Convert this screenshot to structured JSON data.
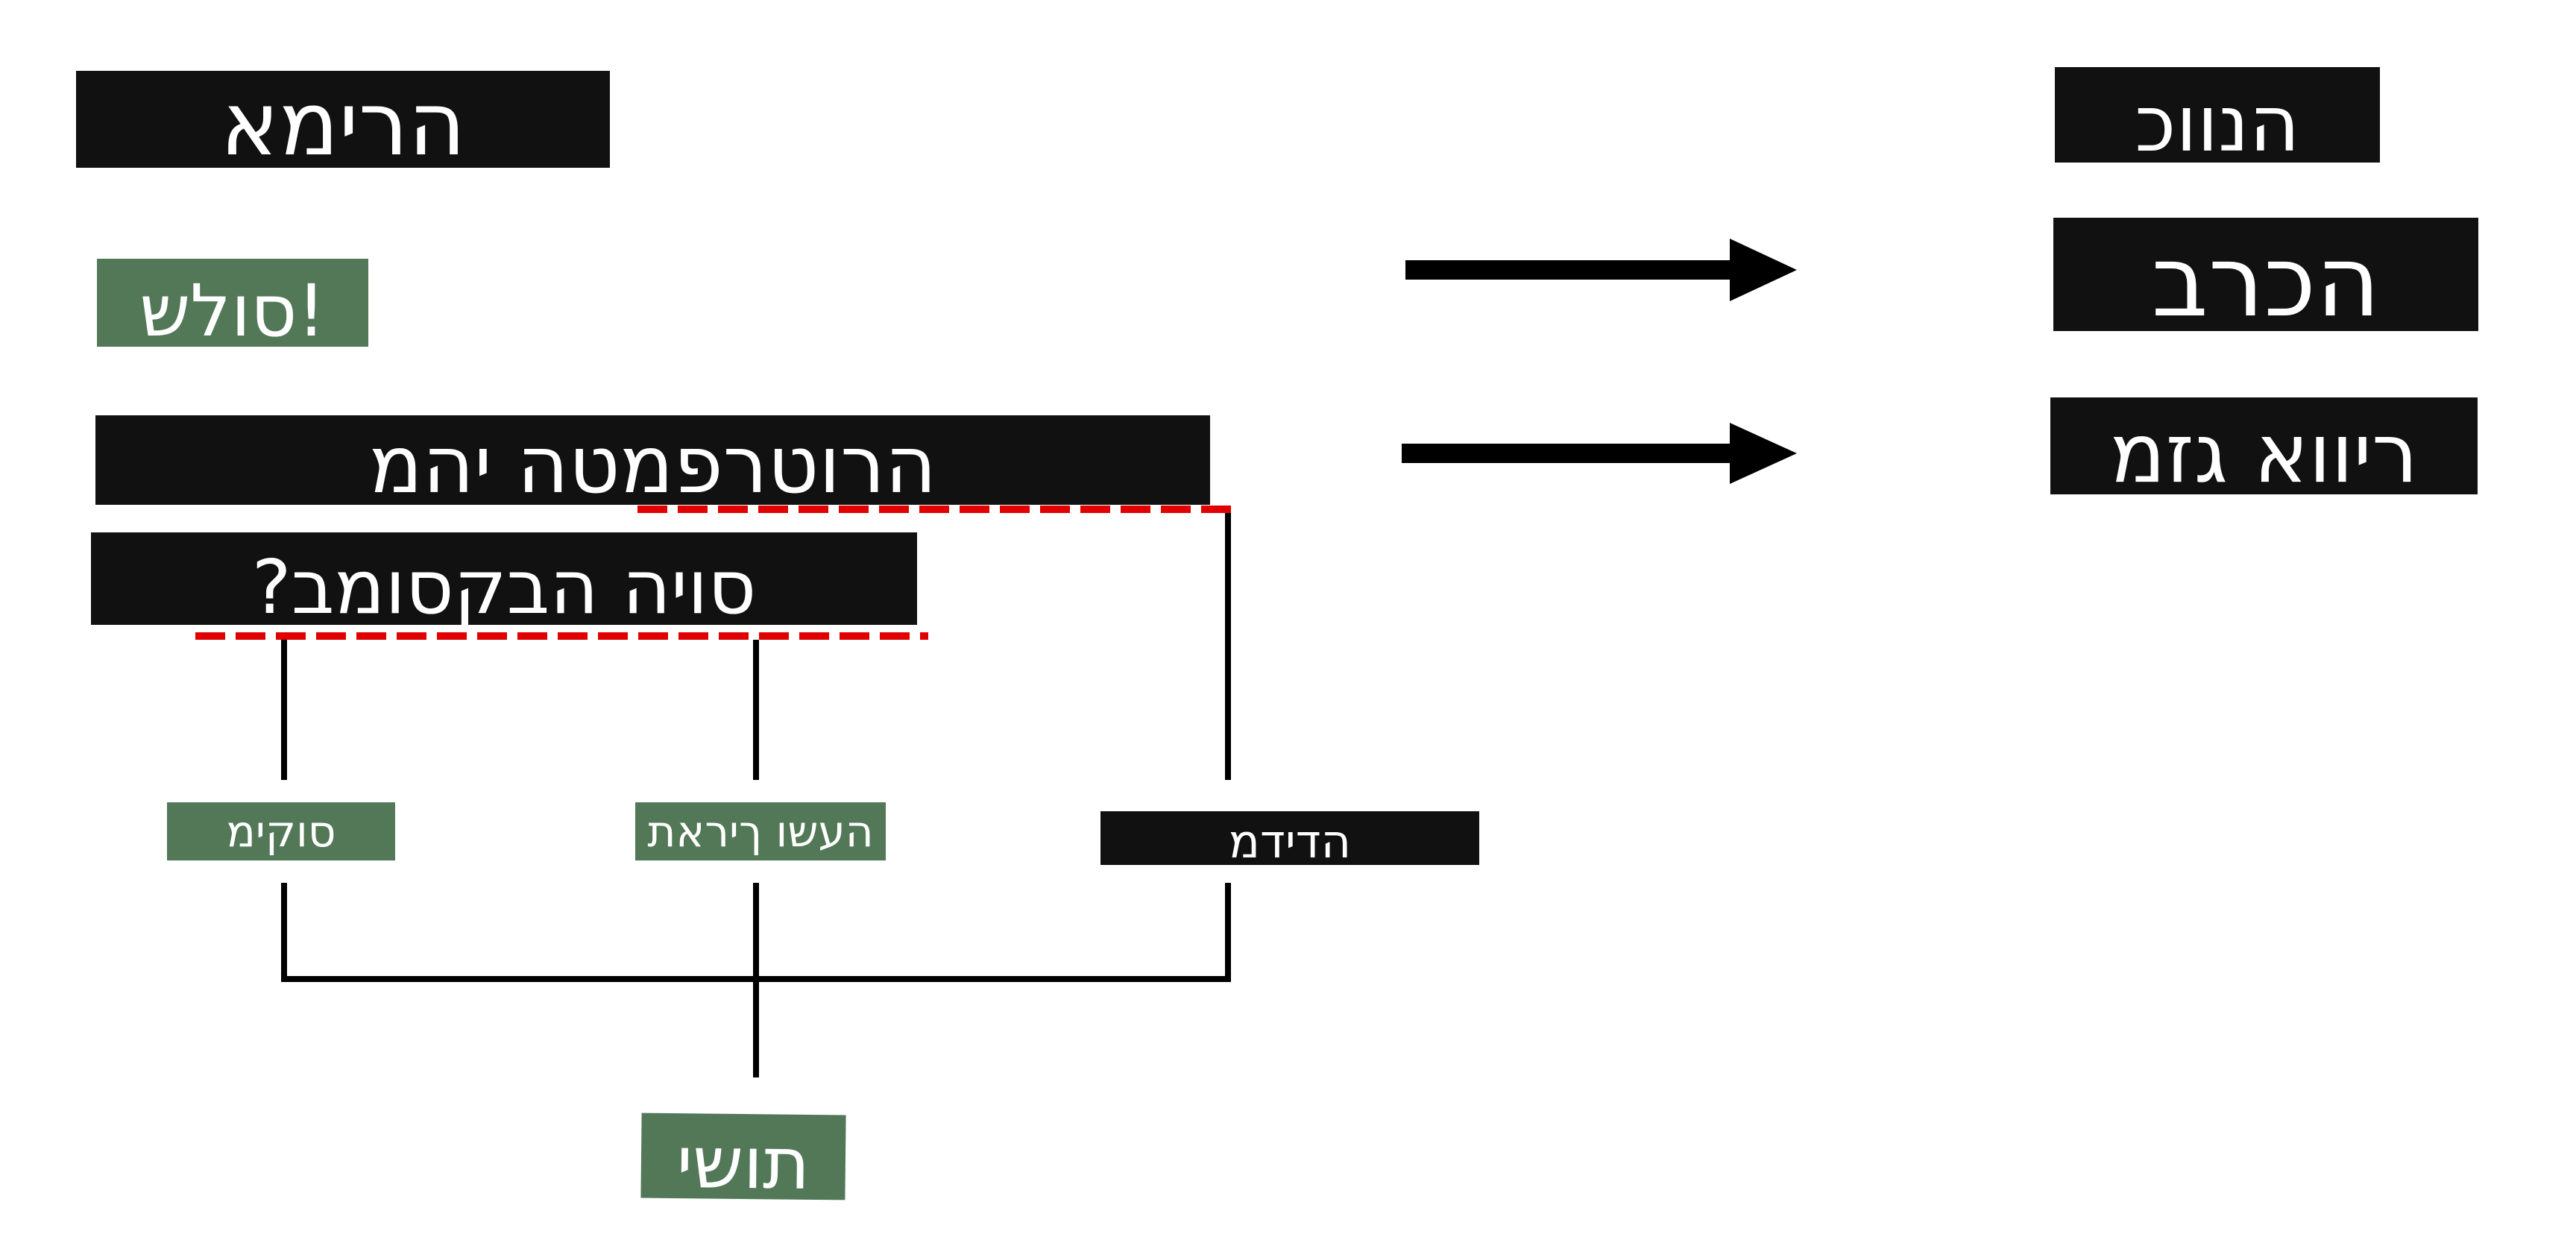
{
  "diagram": {
    "title": "הרימא",
    "greeting": "סולש!",
    "question_1": "הרוטרפמטה יהמ",
    "question_2": "?סויה הבקסומב",
    "options": [
      {
        "label": "סוקימ"
      },
      {
        "label": "העשו ךיראת"
      },
      {
        "label": "הדידמ"
      }
    ],
    "result": "תושי"
  },
  "right_column": {
    "items": [
      {
        "label": "הנווכ"
      },
      {
        "label": "הכרב"
      },
      {
        "label": "ריווא גזמ"
      }
    ]
  },
  "colors": {
    "label_dark": "#111111",
    "label_green": "#527858",
    "label_text": "#ffffff",
    "connector": "#000000",
    "dashed_underline": "#e00000"
  }
}
